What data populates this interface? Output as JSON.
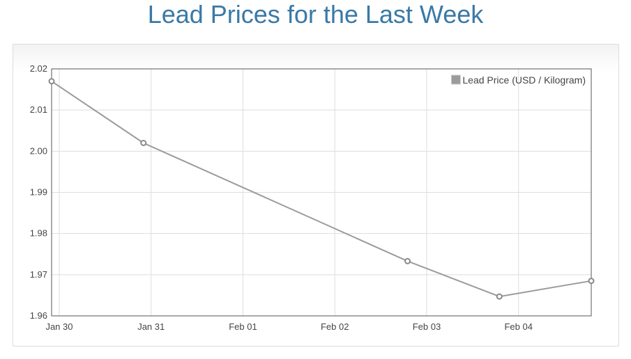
{
  "header": {
    "title": "Lead Prices for the Last Week"
  },
  "chart_data": {
    "type": "line",
    "x": [
      "2024-01-29T22:00",
      "2024-01-30T22:00",
      "2024-02-02T19:00",
      "2024-02-03T19:00",
      "2024-02-04T19:00"
    ],
    "series": [
      {
        "name": "Lead Price (USD / Kilogram)",
        "values": [
          2.017,
          2.002,
          1.9733,
          1.9647,
          1.9685
        ],
        "color": "#9b9b9b"
      }
    ],
    "xticks": [
      {
        "x": "2024-01-30T00:00",
        "label": "Jan 30"
      },
      {
        "x": "2024-01-31T00:00",
        "label": "Jan 31"
      },
      {
        "x": "2024-02-01T00:00",
        "label": "Feb 01"
      },
      {
        "x": "2024-02-02T00:00",
        "label": "Feb 02"
      },
      {
        "x": "2024-02-03T00:00",
        "label": "Feb 03"
      },
      {
        "x": "2024-02-04T00:00",
        "label": "Feb 04"
      }
    ],
    "yticks": [
      "2.02",
      "2.01",
      "2.00",
      "1.99",
      "1.98",
      "1.97",
      "1.96"
    ],
    "xlim": [
      "2024-01-29T22:00",
      "2024-02-04T19:00"
    ],
    "ylim": [
      1.96,
      2.02
    ],
    "grid": true,
    "legend_position": "top-right",
    "title": "",
    "xlabel": "",
    "ylabel": ""
  }
}
